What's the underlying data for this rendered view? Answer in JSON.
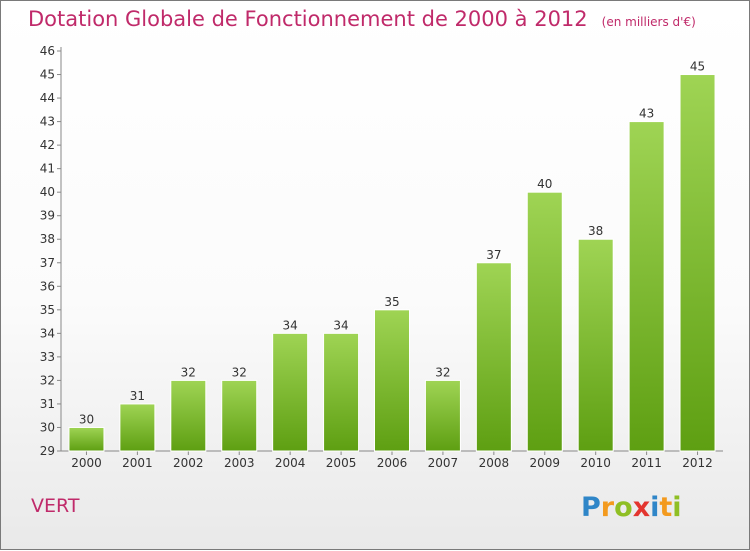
{
  "header": {
    "title": "Dotation Globale de Fonctionnement de 2000 à 2012",
    "subtitle": "(en milliers d'€)"
  },
  "commune": "VERT",
  "logo": {
    "text": "Proxiti"
  },
  "colors": {
    "accent": "#c02a6a",
    "bar_light": "#9fd454",
    "bar_dark": "#5e9f12"
  },
  "chart_data": {
    "type": "bar",
    "categories": [
      "2000",
      "2001",
      "2002",
      "2003",
      "2004",
      "2005",
      "2006",
      "2007",
      "2008",
      "2009",
      "2010",
      "2011",
      "2012"
    ],
    "values": [
      30,
      31,
      32,
      32,
      34,
      34,
      35,
      32,
      37,
      40,
      38,
      43,
      45
    ],
    "ylim": [
      29,
      46
    ],
    "yticks": [
      29,
      30,
      31,
      32,
      33,
      34,
      35,
      36,
      37,
      38,
      39,
      40,
      41,
      42,
      43,
      44,
      45,
      46
    ],
    "grid": false,
    "legend": "none"
  }
}
